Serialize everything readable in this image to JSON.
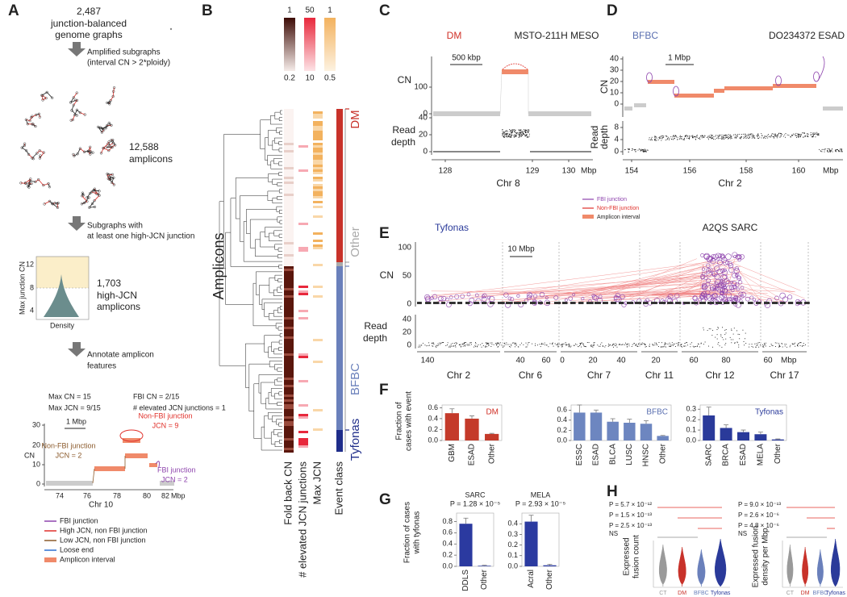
{
  "panels": {
    "A": {
      "letter": "A",
      "header": [
        "2,487",
        "junction-balanced",
        "genome graphs"
      ],
      "step1": [
        "Amplified subgraphs",
        "(interval CN > 2*ploidy)"
      ],
      "amplicons": [
        "12,588",
        "amplicons"
      ],
      "step2": [
        "Subgraphs with",
        "at least one high-JCN junction"
      ],
      "violin": {
        "ylabel": "Max junction CN",
        "yticks": [
          "4",
          "8",
          "12"
        ],
        "xlabel": "Density"
      },
      "high": [
        "1,703",
        "high-JCN",
        "amplicons"
      ],
      "step3": [
        "Annotate amplicon",
        "features"
      ],
      "stats": [
        "Max CN = 15",
        "Max JCN = 9/15",
        "FBI CN = 2/15",
        "# elevated JCN junctions = 1"
      ],
      "example": {
        "ylabel": "CN",
        "yticks": [
          "0",
          "10",
          "20",
          "30"
        ],
        "xticks": [
          "74",
          "76",
          "78",
          "80",
          "82"
        ],
        "xunit": "Mbp",
        "xlabel": "Chr 10",
        "scale": "1 Mbp",
        "notes": [
          {
            "text": [
              "Non-FBI junction",
              "JCN = 2"
            ],
            "color": "#8b5a2b"
          },
          {
            "text": [
              "Non-FBI junction",
              "JCN = 9"
            ],
            "color": "#e0302a"
          },
          {
            "text": [
              "FBI junction",
              "JCN = 2"
            ],
            "color": "#8e44ad"
          }
        ]
      },
      "legend": [
        {
          "label": "FBI junction",
          "color": "#8e44ad"
        },
        {
          "label": "High JCN, non FBI junction",
          "color": "#e0302a"
        },
        {
          "label": "Low JCN, non FBI junction",
          "color": "#8b5a2b"
        },
        {
          "label": "Loose end",
          "color": "#2e6fd0"
        },
        {
          "label": "Amplicon interval",
          "color": "#f08a6a"
        }
      ]
    },
    "B": {
      "letter": "B",
      "scales_top": [
        "1",
        "50",
        "1"
      ],
      "scales_bottom": [
        "0.2",
        "10",
        "0.5"
      ],
      "ylabel": "Amplicons",
      "columns": [
        "Fold back CN",
        "# elevated JCN junctions",
        "Max JCN",
        "Event class"
      ],
      "classes": [
        {
          "label": "DM",
          "color": "#c8322a"
        },
        {
          "label": "Other",
          "color": "#aaaaaa"
        },
        {
          "label": "BFBC",
          "color": "#6a80bb"
        },
        {
          "label": "Tyfonas",
          "color": "#1f2d8a"
        }
      ]
    },
    "C": {
      "letter": "C",
      "event": "DM",
      "event_color": "#d03027",
      "sample": "MSTO-211H MESO",
      "scale": "500 kbp",
      "cn_label": "CN",
      "cn_ticks": [
        "0",
        "100"
      ],
      "rd_label": [
        "Read",
        "depth"
      ],
      "rd_ticks": [
        "0",
        "20",
        "40"
      ],
      "xticks": [
        "128",
        "129",
        "130"
      ],
      "xunit": "Mbp",
      "xlabel": "Chr 8"
    },
    "D": {
      "letter": "D",
      "event": "BFBC",
      "event_color": "#5a6fb0",
      "sample": "DO234372 ESAD",
      "scale": "1 Mbp",
      "cn_label": "CN",
      "cn_ticks": [
        "0",
        "10",
        "20",
        "30",
        "40"
      ],
      "rd_label": [
        "Read",
        "depth"
      ],
      "rd_ticks": [
        "0",
        "4",
        "8"
      ],
      "xticks": [
        "154",
        "156",
        "158",
        "160"
      ],
      "xunit": "Mbp",
      "xlabel": "Chr 2"
    },
    "legend_CD": [
      {
        "label": "FBI junction",
        "color": "#8e44ad"
      },
      {
        "label": "Non-FBI junction",
        "color": "#e0302a"
      },
      {
        "label": "Amplicon interval",
        "color": "#f08a6a"
      }
    ],
    "E": {
      "letter": "E",
      "event": "Tyfonas",
      "event_color": "#2a3a9a",
      "sample": "A2QS SARC",
      "scale": "10 Mbp",
      "cn_label": "CN",
      "cn_ticks": [
        "0",
        "50",
        "100"
      ],
      "rd_label": [
        "Read",
        "depth"
      ],
      "rd_ticks": [
        "0",
        "20",
        "40"
      ],
      "xticks": [
        "140",
        "40",
        "60",
        "0",
        "20",
        "40",
        "20",
        "60",
        "80",
        "60"
      ],
      "xunit": "Mbp",
      "chromosomes": [
        "Chr 2",
        "Chr 6",
        "Chr 7",
        "Chr 11",
        "Chr 12",
        "Chr 17"
      ]
    },
    "F": {
      "letter": "F",
      "ylabel": [
        "Fraction of",
        "cases with event"
      ]
    },
    "G": {
      "letter": "G",
      "ylabel": [
        "Fraction of cases",
        "with tyfonas"
      ]
    },
    "H": {
      "letter": "H",
      "plots": [
        {
          "pvalues": [
            "P = 5.7 × 10⁻¹²",
            "P = 1.5 × 10⁻¹³",
            "P = 2.5 × 10⁻¹³"
          ],
          "ns": "NS",
          "ylabel": [
            "Expressed",
            "fusion count"
          ],
          "categories": [
            "CT",
            "DM",
            "BFBC",
            "Tyfonas"
          ]
        },
        {
          "pvalues": [
            "P = 9.0 × 10⁻¹³",
            "P = 2.6 × 10⁻⁶",
            "P = 4.8 × 10⁻⁶"
          ],
          "ns": "NS",
          "ylabel": [
            "Expressed fusion",
            "density per Mbp"
          ],
          "categories": [
            "CT",
            "DM",
            "BFBC",
            "Tyfonas"
          ]
        }
      ],
      "colors": [
        "#9a9a9a",
        "#c8322a",
        "#6a80bb",
        "#2a3a9a"
      ]
    }
  },
  "chart_data": [
    {
      "type": "bar",
      "title": "DM",
      "title_color": "#d03027",
      "title_position": "inside",
      "categories": [
        "GBM",
        "ESAD",
        "Other"
      ],
      "values": [
        0.5,
        0.4,
        0.12
      ],
      "errors": [
        0.08,
        0.05,
        0.01
      ],
      "color": "#c43a2a",
      "ylim": [
        0,
        0.65
      ],
      "yticks": [
        {
          "value": 0,
          "label": "0.0"
        },
        0.2,
        0.4,
        0.6
      ]
    },
    {
      "type": "bar",
      "title": "BFBC",
      "title_color": "#5a6fb0",
      "title_position": "inside",
      "categories": [
        "ESSC",
        "ESAD",
        "BLCA",
        "LUSC",
        "HNSC",
        "Other"
      ],
      "values": [
        0.55,
        0.55,
        0.37,
        0.35,
        0.33,
        0.09
      ],
      "errors": [
        0.15,
        0.05,
        0.06,
        0.07,
        0.06,
        0.01
      ],
      "color": "#6d86c0",
      "ylim": [
        0,
        0.7
      ],
      "yticks": [
        {
          "value": 0,
          "label": "0.0"
        },
        0.2,
        0.4,
        0.6
      ]
    },
    {
      "type": "bar",
      "title": "Tyfonas",
      "title_color": "#2a3a9a",
      "title_position": "inside",
      "categories": [
        "SARC",
        "BRCA",
        "ESAD",
        "MELA",
        "Other"
      ],
      "values": [
        0.24,
        0.12,
        0.08,
        0.06,
        0.01
      ],
      "errors": [
        0.08,
        0.03,
        0.02,
        0.02,
        0.005
      ],
      "color": "#2a3a9a",
      "ylim": [
        0,
        0.34
      ],
      "yticks": [
        {
          "value": 0,
          "label": "0.0"
        },
        0.1,
        0.2,
        0.3
      ]
    },
    {
      "type": "bar",
      "title": "SARC",
      "subtitle": "P = 1.28 × 10⁻⁵",
      "title_position": "above",
      "categories": [
        "DDLS",
        "Other"
      ],
      "values": [
        0.76,
        0.01
      ],
      "errors": [
        0.1,
        0.01
      ],
      "color": "#2b3aa0",
      "ylim": [
        0,
        0.95
      ],
      "yticks": [
        {
          "value": 0,
          "label": "0.0"
        },
        0.2,
        0.4,
        0.6,
        0.8
      ]
    },
    {
      "type": "bar",
      "title": "MELA",
      "subtitle": "P = 2.93 × 10⁻⁵",
      "title_position": "above",
      "categories": [
        "Acral",
        "Other"
      ],
      "values": [
        0.42,
        0.01
      ],
      "errors": [
        0.06,
        0.01
      ],
      "color": "#2b3aa0",
      "ylim": [
        0,
        0.5
      ],
      "yticks": [
        {
          "value": 0,
          "label": "0.0"
        },
        0.1,
        0.2,
        0.3,
        0.4
      ]
    }
  ]
}
